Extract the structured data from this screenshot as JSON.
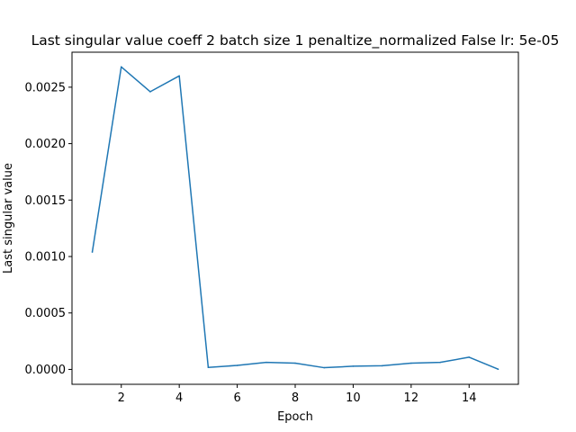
{
  "chart_data": {
    "type": "line",
    "title": "Last singular value coeff 2 batch size 1 penaltize_normalized False lr: 5e-05",
    "xlabel": "Epoch",
    "ylabel": "Last singular value",
    "x": [
      1,
      2,
      3,
      4,
      5,
      6,
      7,
      8,
      9,
      10,
      11,
      12,
      13,
      14,
      15
    ],
    "series": [
      {
        "values": [
          0.00104,
          0.00268,
          0.00246,
          0.0026,
          1.8e-05,
          3.5e-05,
          6.2e-05,
          5.5e-05,
          1.5e-05,
          2.8e-05,
          3.2e-05,
          5.5e-05,
          6.2e-05,
          0.000108,
          2e-06
        ]
      }
    ],
    "xlim": [
      0.3,
      15.7
    ],
    "ylim": [
      -0.000132,
      0.00281
    ],
    "xticks": [
      2,
      4,
      6,
      8,
      10,
      12,
      14
    ],
    "xtick_labels": [
      "2",
      "4",
      "6",
      "8",
      "10",
      "12",
      "14"
    ],
    "yticks": [
      0.0,
      0.0005,
      0.001,
      0.0015,
      0.002,
      0.0025
    ],
    "ytick_labels": [
      "0.0000",
      "0.0005",
      "0.0010",
      "0.0015",
      "0.0020",
      "0.0025"
    ],
    "grid": false,
    "line_color": "#1f77b4"
  }
}
